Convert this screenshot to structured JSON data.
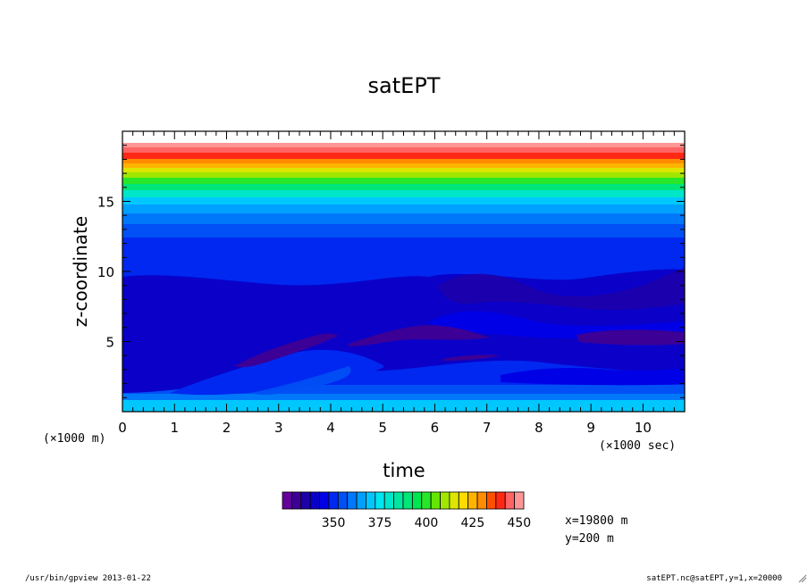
{
  "chart_data": {
    "type": "heatmap",
    "title": "satEPT",
    "xlabel": "time",
    "ylabel": "z-coordinate",
    "x_unit": "(×1000 sec)",
    "y_unit": "(×1000 m)",
    "xlim": [
      0,
      10.8
    ],
    "ylim": [
      0,
      20
    ],
    "x_ticks": [
      "0",
      "1",
      "2",
      "3",
      "4",
      "5",
      "6",
      "7",
      "8",
      "9",
      "10"
    ],
    "y_ticks": [
      "5",
      "10",
      "15"
    ],
    "colorbar": {
      "levels": [
        330,
        335,
        340,
        345,
        350,
        355,
        360,
        365,
        370,
        375,
        380,
        385,
        390,
        395,
        400,
        405,
        410,
        415,
        420,
        425,
        430,
        435,
        440,
        445,
        450
      ],
      "labels": [
        "350",
        "375",
        "400",
        "425",
        "450"
      ],
      "colors": [
        "#64009a",
        "#3c0096",
        "#1e00a8",
        "#0a00c8",
        "#0000e6",
        "#0028f0",
        "#0050f5",
        "#0078fa",
        "#00a0ff",
        "#00c8ff",
        "#00e6f0",
        "#00e6c8",
        "#00e6a0",
        "#00e678",
        "#00e650",
        "#28e628",
        "#64e600",
        "#a0e600",
        "#dce600",
        "#ffdc00",
        "#ffb400",
        "#ff8c00",
        "#ff5000",
        "#ff2814",
        "#ff6464",
        "#ff9696"
      ]
    },
    "annotations": [
      "x=19800 m",
      "y=200 m"
    ]
  },
  "footer": {
    "left": "/usr/bin/gpview  2013-01-22",
    "right": "satEPT.nc@satEPT,y=1,x=20000"
  }
}
